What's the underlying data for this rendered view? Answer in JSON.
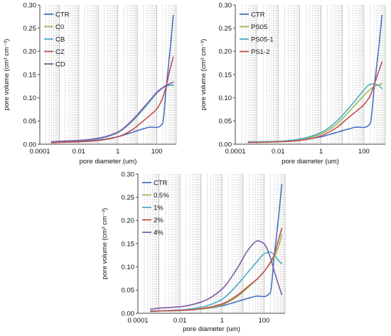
{
  "colors": {
    "CTR": "#4472c4",
    "green": "#9bbb59",
    "teal": "#4bacc6",
    "red": "#c0504d",
    "purple": "#7f5aa8",
    "grid": "#b8b8b8",
    "axis": "#444444"
  },
  "chart_data": [
    {
      "type": "line",
      "xscale": "log",
      "xlim": [
        0.0001,
        1000
      ],
      "ylim": [
        0,
        0.3
      ],
      "xlabel": "pore diameter (um)",
      "ylabel": "pore volume (cm³ cm⁻³)",
      "x_tick_labels": [
        "0.0001",
        "0.01",
        "1",
        "100"
      ],
      "y_tick_labels": [
        "0.00",
        "0.05",
        "0.10",
        "0.15",
        "0.20",
        "0.25",
        "0.30"
      ],
      "legend_position": "top-left",
      "grid": "vertical log minor gridlines (dashed)",
      "series": [
        {
          "name": "CTR",
          "color": "#4472c4",
          "x": [
            0.0004,
            0.001,
            0.01,
            0.1,
            1,
            5,
            20,
            50,
            100,
            200,
            300,
            500,
            700
          ],
          "y": [
            0.005,
            0.005,
            0.006,
            0.009,
            0.016,
            0.025,
            0.033,
            0.037,
            0.036,
            0.045,
            0.12,
            0.21,
            0.278
          ]
        },
        {
          "name": "C0",
          "color": "#9bbb59",
          "x": [
            0.0004,
            0.001,
            0.01,
            0.1,
            1,
            5,
            20,
            50,
            100,
            200,
            300,
            500,
            700
          ],
          "y": [
            0.005,
            0.006,
            0.008,
            0.012,
            0.025,
            0.048,
            0.075,
            0.095,
            0.11,
            0.122,
            0.126,
            0.127,
            0.127
          ]
        },
        {
          "name": "CB",
          "color": "#4bacc6",
          "x": [
            0.0004,
            0.001,
            0.01,
            0.1,
            1,
            5,
            20,
            50,
            100,
            200,
            300,
            500,
            700
          ],
          "y": [
            0.005,
            0.006,
            0.008,
            0.012,
            0.025,
            0.048,
            0.075,
            0.095,
            0.11,
            0.121,
            0.125,
            0.127,
            0.128
          ]
        },
        {
          "name": "CZ",
          "color": "#c0504d",
          "x": [
            0.0004,
            0.001,
            0.01,
            0.1,
            1,
            5,
            20,
            50,
            100,
            200,
            300,
            500,
            700
          ],
          "y": [
            0.003,
            0.004,
            0.005,
            0.008,
            0.016,
            0.03,
            0.05,
            0.064,
            0.076,
            0.1,
            0.125,
            0.165,
            0.188
          ]
        },
        {
          "name": "CD",
          "color": "#7f5aa8",
          "x": [
            0.0004,
            0.001,
            0.01,
            0.1,
            1,
            5,
            20,
            50,
            100,
            200,
            300,
            500,
            700
          ],
          "y": [
            0.005,
            0.006,
            0.008,
            0.013,
            0.026,
            0.05,
            0.078,
            0.097,
            0.112,
            0.122,
            0.127,
            0.131,
            0.134
          ]
        }
      ]
    },
    {
      "type": "line",
      "xscale": "log",
      "xlim": [
        0.0001,
        1000
      ],
      "ylim": [
        0,
        0.3
      ],
      "xlabel": "pore diameter (um)",
      "ylabel": "pore volume (cm³ cm⁻³)",
      "x_tick_labels": [
        "0.0001",
        "0.01",
        "1",
        "100"
      ],
      "y_tick_labels": [
        "0.00",
        "0.05",
        "0.10",
        "0.15",
        "0.20",
        "0.25",
        "0.30"
      ],
      "legend_position": "top-left",
      "grid": "vertical log minor gridlines (dashed)",
      "series": [
        {
          "name": "CTR",
          "color": "#4472c4",
          "x": [
            0.0004,
            0.001,
            0.01,
            0.1,
            1,
            5,
            20,
            50,
            100,
            200,
            300,
            500,
            700
          ],
          "y": [
            0.005,
            0.005,
            0.006,
            0.009,
            0.016,
            0.025,
            0.033,
            0.037,
            0.036,
            0.045,
            0.12,
            0.21,
            0.278
          ]
        },
        {
          "name": "PS05",
          "color": "#9bbb59",
          "x": [
            0.0004,
            0.001,
            0.01,
            0.1,
            1,
            5,
            20,
            50,
            100,
            200,
            300,
            500,
            700
          ],
          "y": [
            0.004,
            0.005,
            0.006,
            0.01,
            0.022,
            0.042,
            0.07,
            0.09,
            0.105,
            0.118,
            0.124,
            0.128,
            0.13
          ]
        },
        {
          "name": "PS05-1",
          "color": "#4bacc6",
          "x": [
            0.0004,
            0.001,
            0.01,
            0.1,
            1,
            5,
            20,
            50,
            100,
            200,
            300,
            500,
            700
          ],
          "y": [
            0.004,
            0.005,
            0.006,
            0.011,
            0.025,
            0.048,
            0.078,
            0.1,
            0.117,
            0.129,
            0.13,
            0.126,
            0.12
          ]
        },
        {
          "name": "PS1-2",
          "color": "#c0504d",
          "x": [
            0.0004,
            0.001,
            0.01,
            0.1,
            1,
            5,
            20,
            50,
            100,
            200,
            300,
            500,
            700
          ],
          "y": [
            0.004,
            0.004,
            0.005,
            0.008,
            0.018,
            0.035,
            0.058,
            0.073,
            0.085,
            0.105,
            0.128,
            0.158,
            0.177
          ]
        }
      ]
    },
    {
      "type": "line",
      "xscale": "log",
      "xlim": [
        0.0001,
        1000
      ],
      "ylim": [
        0,
        0.3
      ],
      "xlabel": "pore diameter (um)",
      "ylabel": "pore volume (cm³ cm⁻³)",
      "x_tick_labels": [
        "0.0001",
        "0.01",
        "1",
        "100"
      ],
      "y_tick_labels": [
        "0.00",
        "0.05",
        "0.10",
        "0.15",
        "0.20",
        "0.25",
        "0.30"
      ],
      "legend_position": "top-left",
      "grid": "vertical log minor gridlines (dashed)",
      "series": [
        {
          "name": "CTR",
          "color": "#4472c4",
          "x": [
            0.0004,
            0.001,
            0.01,
            0.1,
            1,
            5,
            20,
            50,
            100,
            200,
            300,
            500,
            700
          ],
          "y": [
            0.005,
            0.005,
            0.006,
            0.009,
            0.016,
            0.025,
            0.033,
            0.037,
            0.036,
            0.045,
            0.12,
            0.21,
            0.278
          ]
        },
        {
          "name": "0.5%",
          "color": "#9bbb59",
          "x": [
            0.0004,
            0.001,
            0.01,
            0.1,
            1,
            5,
            20,
            50,
            100,
            200,
            300,
            500,
            700
          ],
          "y": [
            0.004,
            0.005,
            0.006,
            0.009,
            0.018,
            0.035,
            0.058,
            0.075,
            0.09,
            0.108,
            0.12,
            0.145,
            0.17
          ]
        },
        {
          "name": "1%",
          "color": "#4bacc6",
          "x": [
            0.0004,
            0.001,
            0.01,
            0.1,
            1,
            5,
            20,
            50,
            100,
            200,
            300,
            500,
            700
          ],
          "y": [
            0.004,
            0.005,
            0.007,
            0.013,
            0.03,
            0.06,
            0.092,
            0.113,
            0.128,
            0.132,
            0.126,
            0.113,
            0.107
          ]
        },
        {
          "name": "2%",
          "color": "#c0504d",
          "x": [
            0.0004,
            0.001,
            0.01,
            0.1,
            1,
            5,
            20,
            50,
            100,
            200,
            300,
            500,
            700
          ],
          "y": [
            0.004,
            0.005,
            0.006,
            0.01,
            0.02,
            0.038,
            0.06,
            0.075,
            0.09,
            0.11,
            0.125,
            0.16,
            0.183
          ]
        },
        {
          "name": "4%",
          "color": "#7f5aa8",
          "x": [
            0.0004,
            0.001,
            0.01,
            0.1,
            1,
            5,
            20,
            50,
            100,
            200,
            300,
            500,
            700
          ],
          "y": [
            0.009,
            0.011,
            0.014,
            0.024,
            0.052,
            0.095,
            0.14,
            0.156,
            0.15,
            0.12,
            0.092,
            0.06,
            0.04
          ]
        }
      ]
    }
  ]
}
